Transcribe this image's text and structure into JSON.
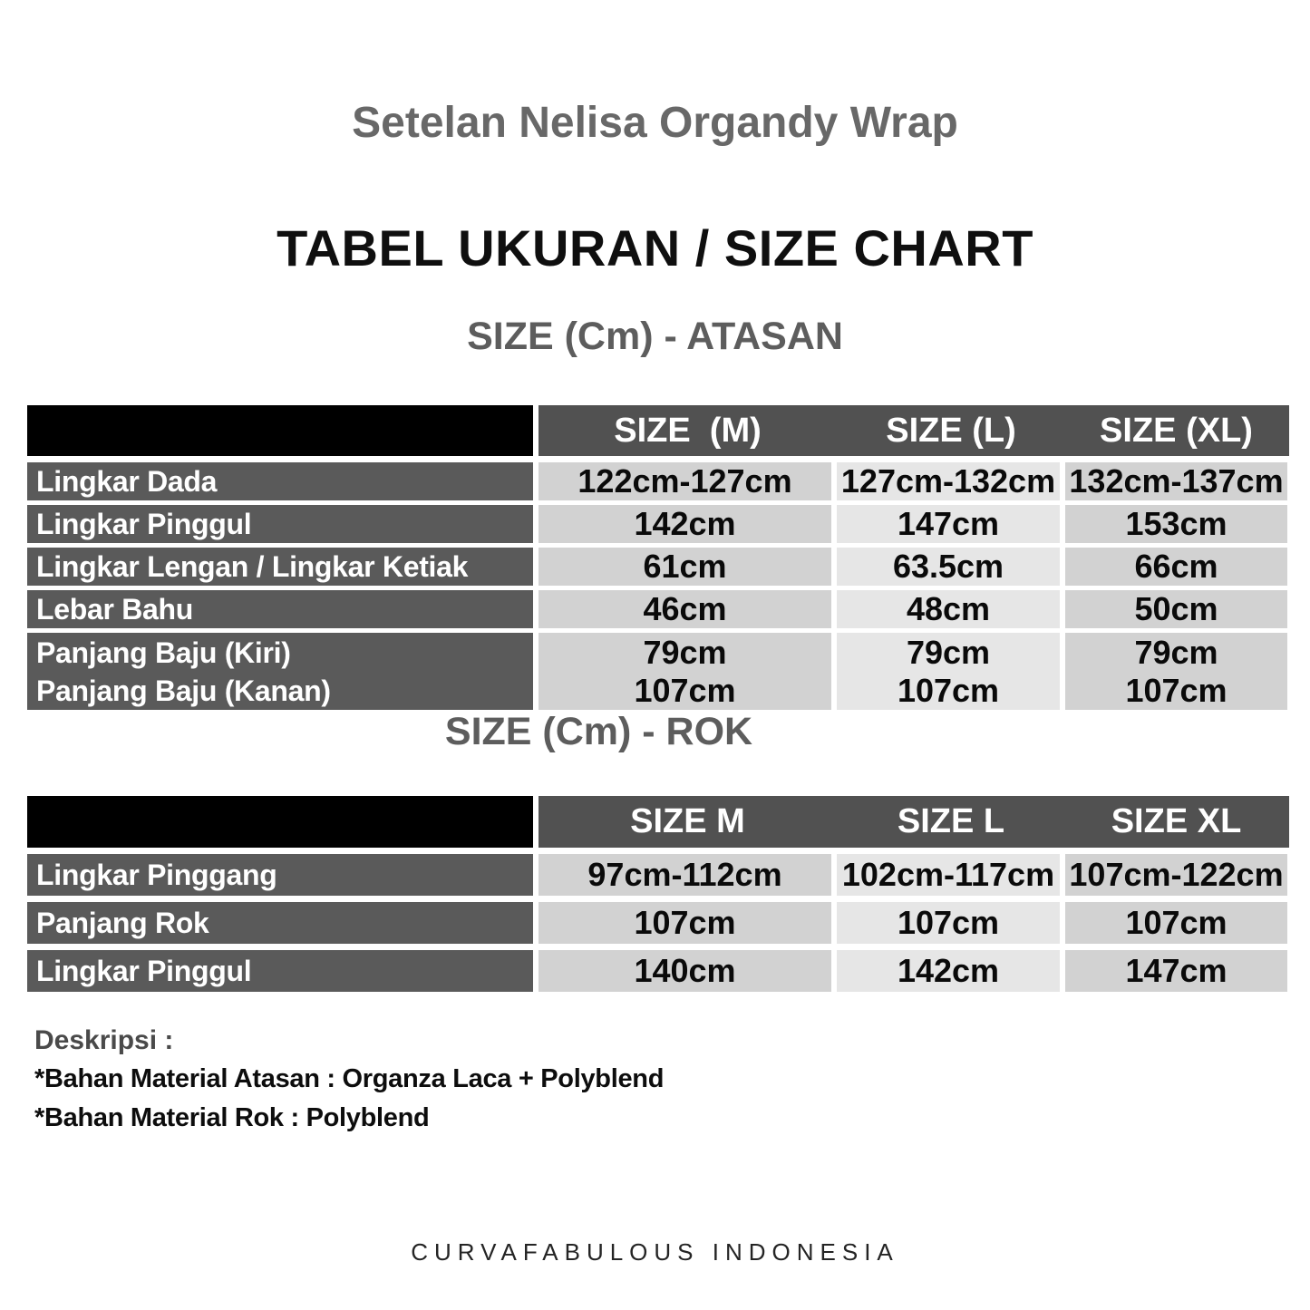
{
  "page": {
    "title": "Setelan Nelisa Organdy Wrap",
    "heading": "TABEL UKURAN / SIZE CHART",
    "footer": "CURVAFABULOUS INDONESIA"
  },
  "colors": {
    "header_cell": "#000000",
    "header_band": "#515151",
    "label_cell": "#5a5a5a",
    "col_m": "#d2d2d2",
    "col_l": "#e6e6e6",
    "col_xl": "#d2d2d2",
    "title_gray": "#686868",
    "section_gray": "#5d5d5d"
  },
  "tables": [
    {
      "section_title": "SIZE (Cm) - ATASAN",
      "columns": [
        "SIZE  (M)",
        "SIZE (L)",
        "SIZE (XL)"
      ],
      "rows": [
        {
          "label_lines": [
            "Lingkar Dada"
          ],
          "cells": [
            [
              "122cm-127cm"
            ],
            [
              "127cm-132cm"
            ],
            [
              "132cm-137cm"
            ]
          ]
        },
        {
          "label_lines": [
            "Lingkar Pinggul"
          ],
          "cells": [
            [
              "142cm"
            ],
            [
              "147cm"
            ],
            [
              "153cm"
            ]
          ]
        },
        {
          "label_lines": [
            "Lingkar Lengan / Lingkar Ketiak"
          ],
          "cells": [
            [
              "61cm"
            ],
            [
              "63.5cm"
            ],
            [
              "66cm"
            ]
          ]
        },
        {
          "label_lines": [
            "Lebar Bahu"
          ],
          "cells": [
            [
              "46cm"
            ],
            [
              "48cm"
            ],
            [
              "50cm"
            ]
          ]
        },
        {
          "label_lines": [
            "Panjang Baju (Kiri)",
            "Panjang Baju (Kanan)"
          ],
          "cells": [
            [
              "79cm",
              "107cm"
            ],
            [
              "79cm",
              "107cm"
            ],
            [
              "79cm",
              "107cm"
            ]
          ]
        }
      ]
    },
    {
      "section_title": "SIZE (Cm) - ROK",
      "columns": [
        "SIZE M",
        "SIZE L",
        "SIZE XL"
      ],
      "rows": [
        {
          "label_lines": [
            "Lingkar Pinggang"
          ],
          "cells": [
            [
              "97cm-112cm"
            ],
            [
              "102cm-117cm"
            ],
            [
              "107cm-122cm"
            ]
          ]
        },
        {
          "label_lines": [
            "Panjang Rok"
          ],
          "cells": [
            [
              "107cm"
            ],
            [
              "107cm"
            ],
            [
              "107cm"
            ]
          ]
        },
        {
          "label_lines": [
            "Lingkar Pinggul"
          ],
          "cells": [
            [
              "140cm"
            ],
            [
              "142cm"
            ],
            [
              "147cm"
            ]
          ]
        }
      ]
    }
  ],
  "description": {
    "heading": "Deskripsi :",
    "lines": [
      "*Bahan Material Atasan : Organza Laca + Polyblend",
      "*Bahan Material Rok : Polyblend"
    ]
  }
}
